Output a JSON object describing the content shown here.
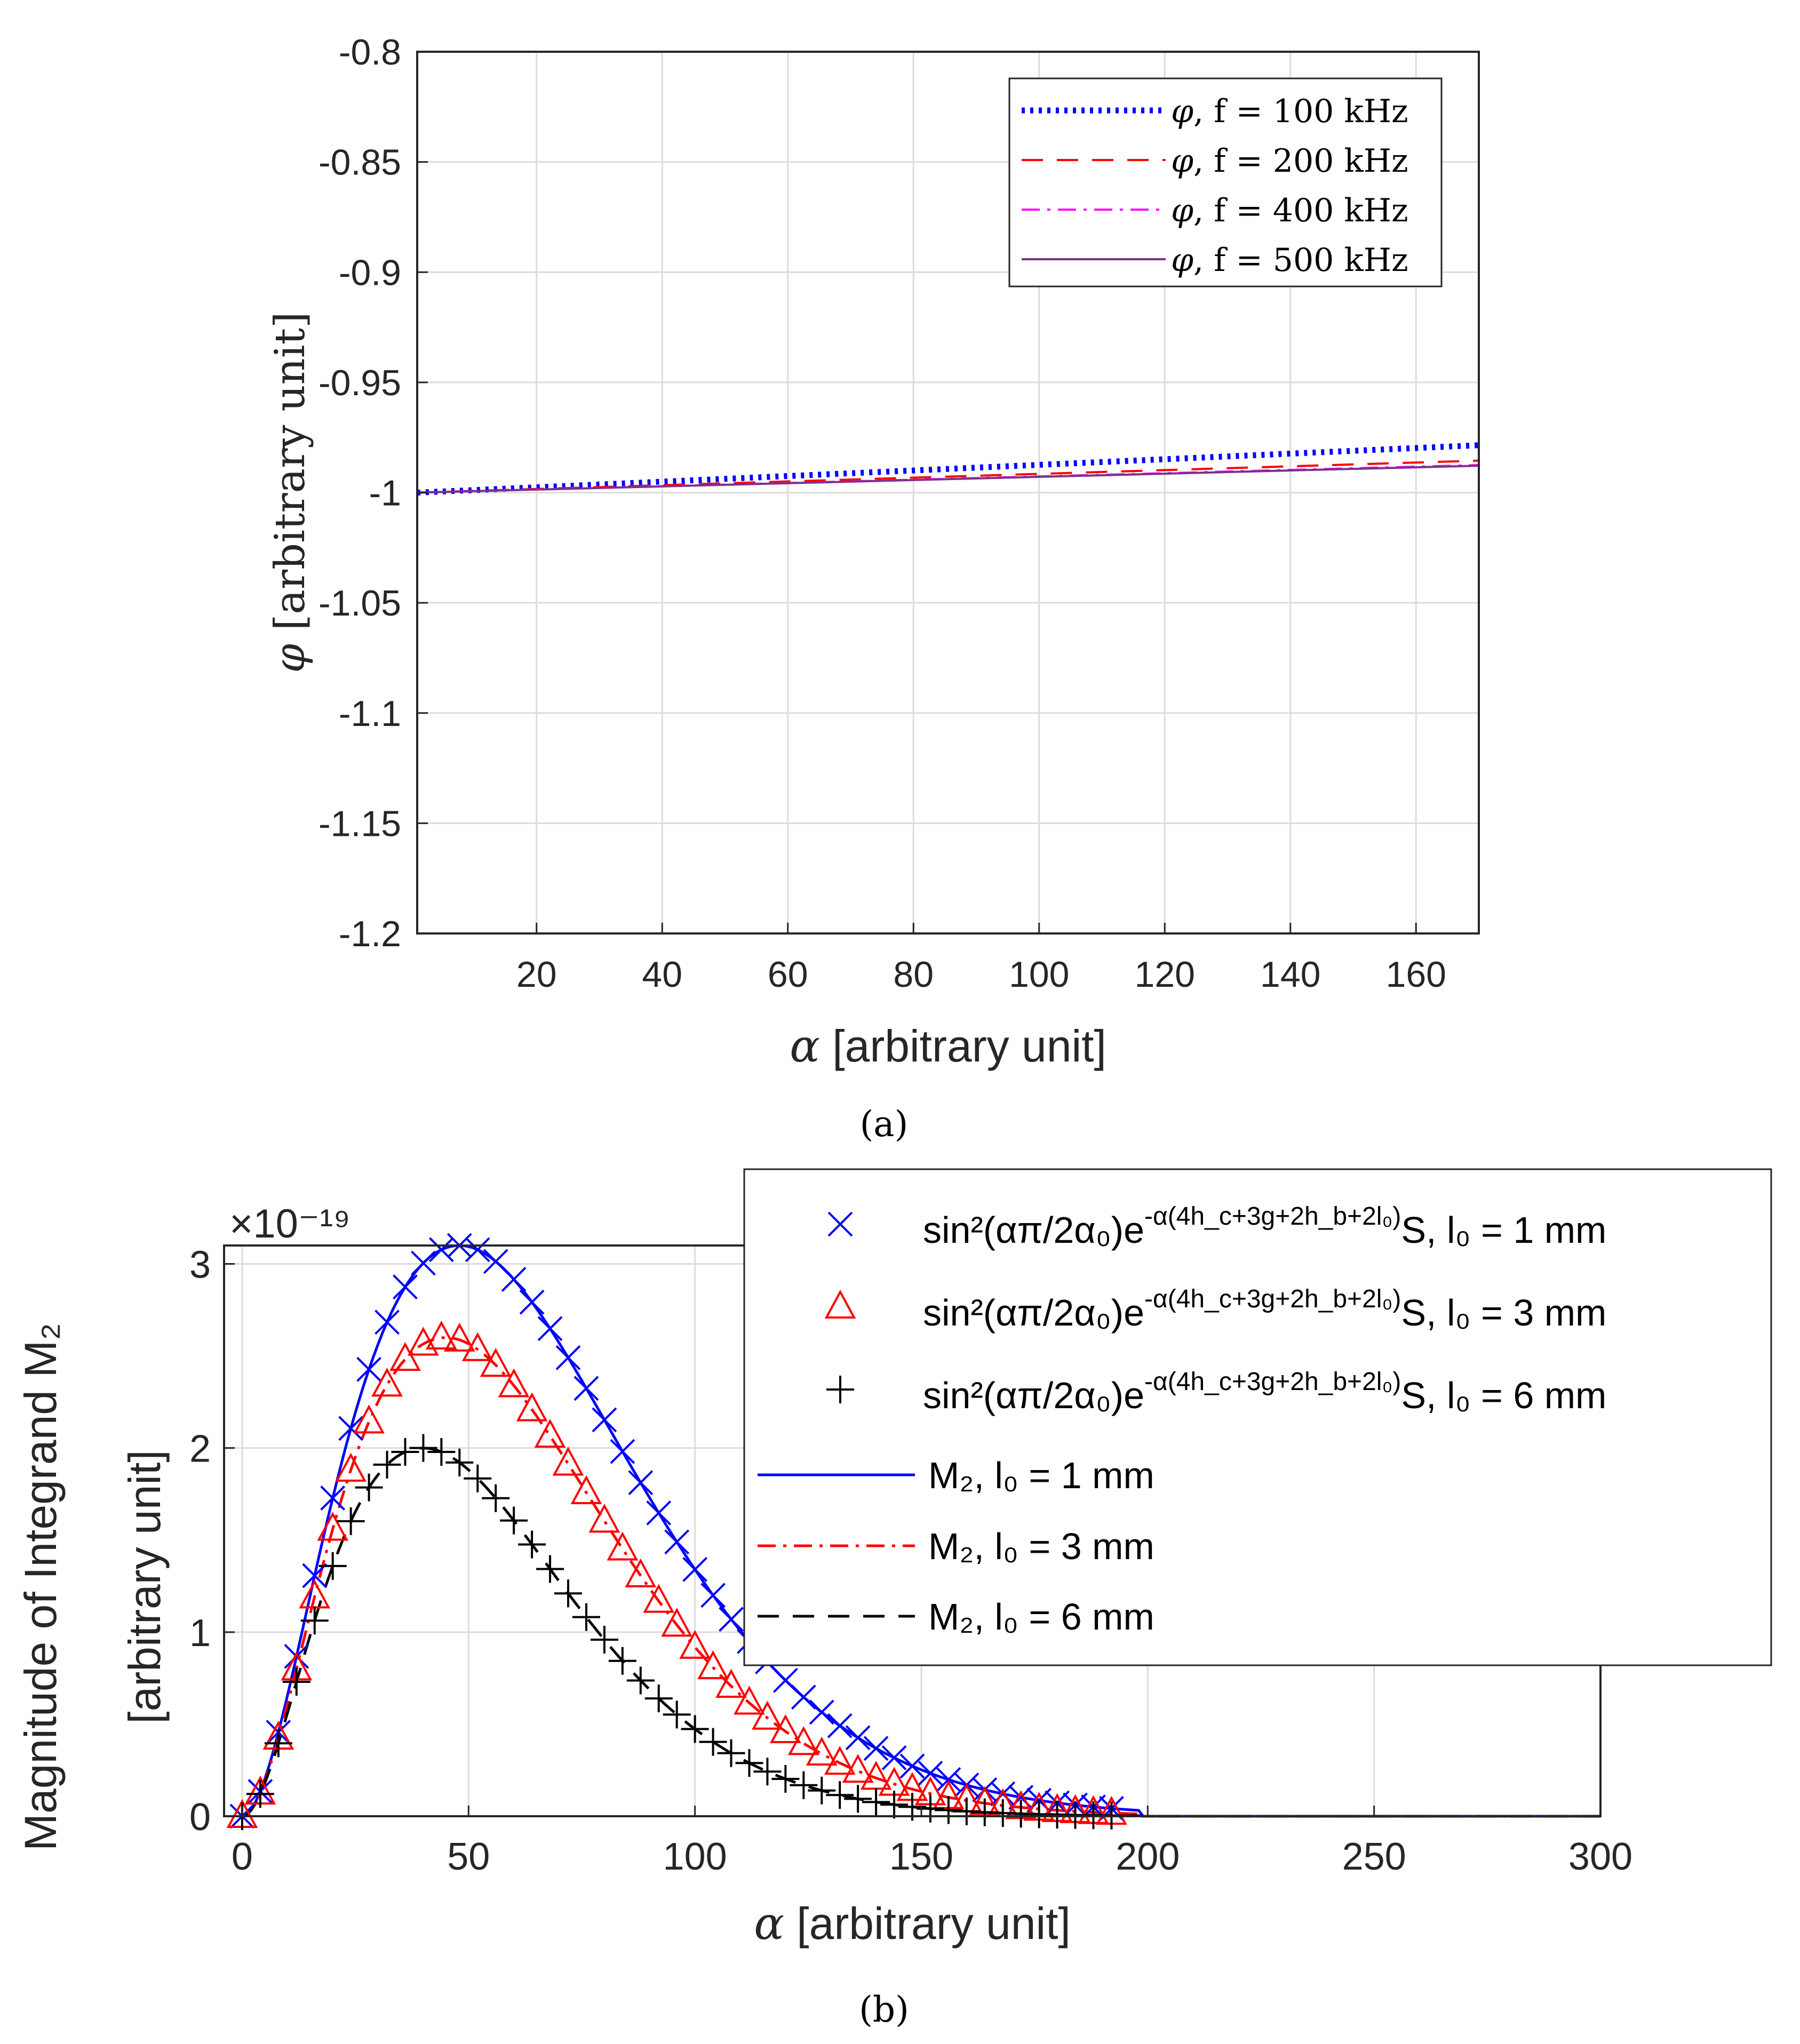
{
  "chart_data": [
    {
      "type": "line",
      "panel_label": "(a)",
      "xlabel_symbol": "α",
      "xlabel_text": " [arbitrary unit]",
      "ylabel_symbol": "φ",
      "ylabel_text": " [arbitrary unit]",
      "xlim": [
        1,
        170
      ],
      "ylim": [
        -1.2,
        -0.8
      ],
      "xticks": [
        20,
        40,
        60,
        80,
        100,
        120,
        140,
        160
      ],
      "xtick_labels": [
        "20",
        "40",
        "60",
        "80",
        "100",
        "120",
        "140",
        "160"
      ],
      "yticks": [
        -1.2,
        -1.15,
        -1.1,
        -1.05,
        -1,
        -0.95,
        -0.9,
        -0.85,
        -0.8
      ],
      "ytick_labels": [
        "-1.2",
        "-1.15",
        "-1.1",
        "-1.05",
        "-1",
        "-0.95",
        "-0.9",
        "-0.85",
        "-0.8"
      ],
      "grid": true,
      "legend_position": "top-right",
      "series": [
        {
          "name": "φ, f = 100 kHz",
          "label_symbol": "φ",
          "label_text": ", f = 100 kHz",
          "color": "#0000ff",
          "style": "dotted",
          "x": [
            1,
            170
          ],
          "y": [
            -1.0,
            -0.9785
          ]
        },
        {
          "name": "φ, f = 200 kHz",
          "label_symbol": "φ",
          "label_text": ", f = 200 kHz",
          "color": "#ff0000",
          "style": "dashed",
          "x": [
            1,
            170
          ],
          "y": [
            -1.0,
            -0.9855
          ]
        },
        {
          "name": "φ, f = 400 kHz",
          "label_symbol": "φ",
          "label_text": ", f = 400 kHz",
          "color": "#ff00ff",
          "style": "dashdot",
          "x": [
            1,
            170
          ],
          "y": [
            -1.0,
            -0.9875
          ]
        },
        {
          "name": "φ, f = 500 kHz",
          "label_symbol": "φ",
          "label_text": ", f = 500 kHz",
          "color": "#7e2f8e",
          "style": "solid",
          "x": [
            1,
            170
          ],
          "y": [
            -1.0,
            -0.9878
          ]
        }
      ]
    },
    {
      "type": "line",
      "panel_label": "(b)",
      "xlabel_symbol": "α",
      "xlabel_text": " [arbitrary unit]",
      "ylabel_line1": "Magnitude of Integrand M₂",
      "ylabel_line2": "[arbitrary unit]",
      "exponent_label": "×10⁻¹⁹",
      "xlim": [
        -4,
        300
      ],
      "ylim": [
        0,
        3.1
      ],
      "xticks": [
        0,
        50,
        100,
        150,
        200,
        250,
        300
      ],
      "xtick_labels": [
        "0",
        "50",
        "100",
        "150",
        "200",
        "250",
        "300"
      ],
      "yticks": [
        0,
        1,
        2,
        3
      ],
      "ytick_labels": [
        "0",
        "1",
        "2",
        "3"
      ],
      "grid": true,
      "legend_position": "top-right",
      "series": [
        {
          "name": "sin²(απ/2α₀)e^-α(4h_c+3g+2h_b+2l₀)S, l₀ = 1 mm",
          "label_prefix": "sin²(απ/2α₀)e",
          "label_exponent": "-α(4h_c+3g+2h_b+2l₀)",
          "label_suffix": "S, l₀ = 1 mm",
          "marker": "x",
          "color": "#0000ff",
          "peak": 3.1,
          "peak_x": 48,
          "width": 40
        },
        {
          "name": "sin²(απ/2α₀)e^-α(4h_c+3g+2h_b+2l₀)S, l₀ = 3 mm",
          "label_prefix": "sin²(απ/2α₀)e",
          "label_exponent": "-α(4h_c+3g+2h_b+2l₀)",
          "label_suffix": "S, l₀ = 3 mm",
          "marker": "triangle",
          "color": "#ff0000",
          "peak": 2.6,
          "peak_x": 45,
          "width": 36
        },
        {
          "name": "sin²(απ/2α₀)e^-α(4h_c+3g+2h_b+2l₀)S, l₀ = 6 mm",
          "label_prefix": "sin²(απ/2α₀)e",
          "label_exponent": "-α(4h_c+3g+2h_b+2l₀)",
          "label_suffix": "S, l₀ = 6 mm",
          "marker": "+",
          "color": "#000000",
          "peak": 2.0,
          "peak_x": 40,
          "width": 33
        },
        {
          "name": "M₂, l₀ = 1 mm",
          "label_text": "M₂, l₀ = 1 mm",
          "line": "solid",
          "color": "#0000ff",
          "peak": 3.1,
          "peak_x": 48,
          "width": 40
        },
        {
          "name": "M₂, l₀ = 3 mm",
          "label_text": "M₂, l₀ = 3 mm",
          "line": "dashdot",
          "color": "#ff0000",
          "peak": 2.6,
          "peak_x": 45,
          "width": 36
        },
        {
          "name": "M₂, l₀ = 6 mm",
          "label_text": "M₂, l₀ = 6 mm",
          "line": "dashed",
          "color": "#000000",
          "peak": 2.0,
          "peak_x": 40,
          "width": 33
        }
      ],
      "marker_x_range": [
        0,
        192
      ],
      "marker_step": 4
    }
  ]
}
